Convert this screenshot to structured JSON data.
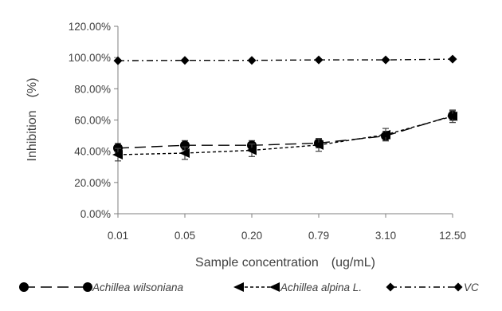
{
  "chart_data": {
    "type": "line",
    "title": "",
    "xlabel": "Sample concentration　(ug/mL)",
    "ylabel": "Inhibition　(%)",
    "categories": [
      "0.01",
      "0.05",
      "0.20",
      "0.79",
      "3.10",
      "12.50"
    ],
    "y_ticks": [
      "0.00%",
      "20.00%",
      "40.00%",
      "60.00%",
      "80.00%",
      "100.00%",
      "120.00%"
    ],
    "ylim": [
      0,
      120
    ],
    "grid": false,
    "legend_position": "bottom",
    "series": [
      {
        "name": "Achillea wilsoniana",
        "values": [
          42.0,
          43.8,
          43.8,
          45.2,
          49.8,
          62.8
        ],
        "error": [
          3,
          3,
          3,
          3,
          3,
          3
        ],
        "marker": "circle",
        "line_style": "long-dash",
        "color": "#000000"
      },
      {
        "name": "Achillea alpina L.",
        "values": [
          37.8,
          38.8,
          40.6,
          44.0,
          50.6,
          62.4
        ],
        "error": [
          4,
          4,
          4,
          4,
          4,
          4
        ],
        "marker": "left-triangle",
        "line_style": "short-dash",
        "color": "#000000"
      },
      {
        "name": "VC",
        "values": [
          98.0,
          98.2,
          98.2,
          98.5,
          98.5,
          99.0
        ],
        "error": [
          0,
          0,
          0,
          0,
          0,
          0
        ],
        "marker": "diamond",
        "line_style": "dash-dot",
        "color": "#000000"
      }
    ]
  }
}
